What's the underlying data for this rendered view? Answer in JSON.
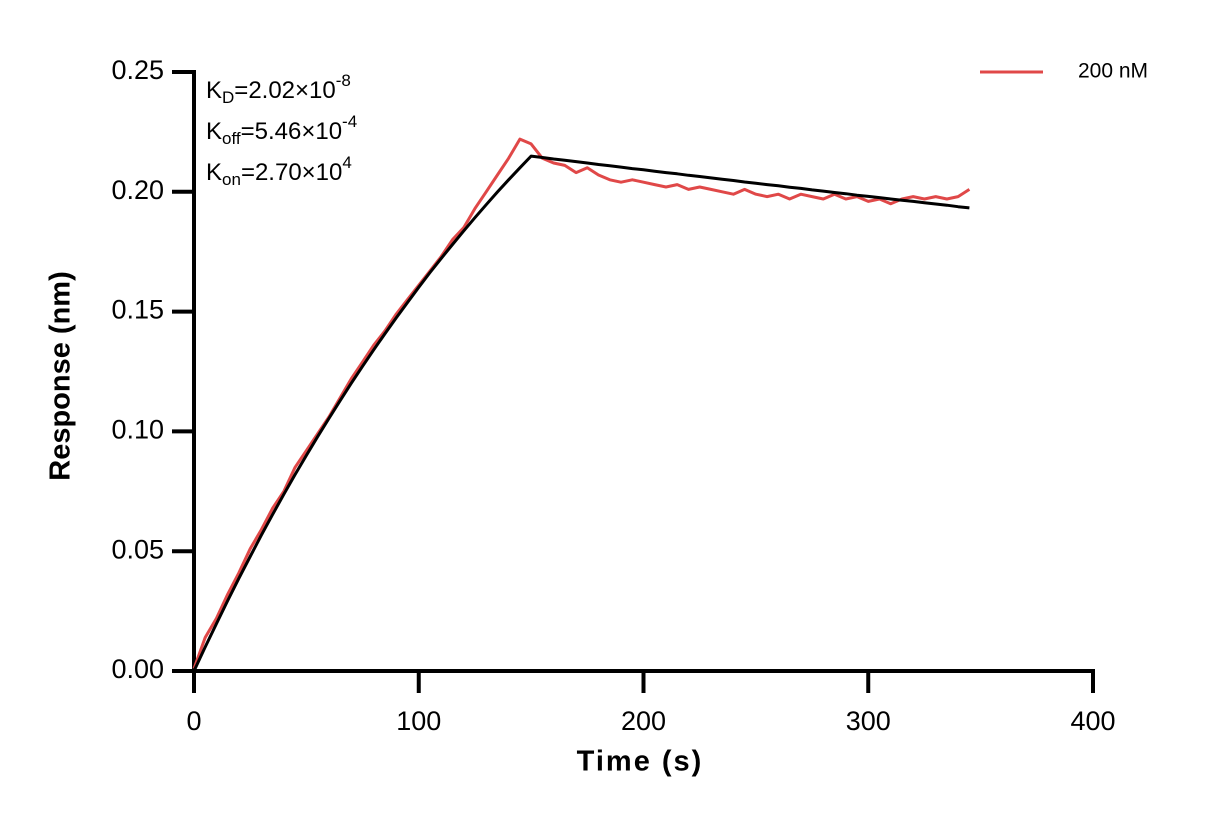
{
  "chart_data": {
    "type": "line",
    "x_label": "Time (s)",
    "y_label": "Response (nm)",
    "annotations": [
      {
        "base": "K",
        "sub": "D",
        "text": "=2.02×10",
        "sup": "-8"
      },
      {
        "base": "K",
        "sub": "off",
        "text": "=5.46×10",
        "sup": "-4"
      },
      {
        "base": "K",
        "sub": "on",
        "text": "=2.70×10",
        "sup": "4"
      }
    ],
    "x": [
      0,
      5,
      10,
      15,
      20,
      25,
      30,
      35,
      40,
      45,
      50,
      55,
      60,
      65,
      70,
      75,
      80,
      85,
      90,
      95,
      100,
      105,
      110,
      115,
      120,
      125,
      130,
      135,
      140,
      145,
      150,
      155,
      160,
      165,
      170,
      175,
      180,
      185,
      190,
      195,
      200,
      205,
      210,
      215,
      220,
      225,
      230,
      235,
      240,
      245,
      250,
      255,
      260,
      265,
      270,
      275,
      280,
      285,
      290,
      295,
      300,
      305,
      310,
      315,
      320,
      325,
      330,
      335,
      340,
      345
    ],
    "series": [
      {
        "name": "200 nM",
        "color": "#e04848",
        "values": [
          0.001,
          0.014,
          0.022,
          0.032,
          0.041,
          0.051,
          0.059,
          0.068,
          0.075,
          0.085,
          0.092,
          0.099,
          0.106,
          0.114,
          0.122,
          0.129,
          0.136,
          0.142,
          0.149,
          0.155,
          0.161,
          0.167,
          0.173,
          0.18,
          0.185,
          0.193,
          0.2,
          0.207,
          0.214,
          0.222,
          0.22,
          0.214,
          0.212,
          0.211,
          0.208,
          0.21,
          0.207,
          0.205,
          0.204,
          0.205,
          0.204,
          0.203,
          0.202,
          0.203,
          0.201,
          0.202,
          0.201,
          0.2,
          0.199,
          0.201,
          0.199,
          0.198,
          0.199,
          0.197,
          0.199,
          0.198,
          0.197,
          0.199,
          0.197,
          0.198,
          0.196,
          0.197,
          0.195,
          0.197,
          0.198,
          0.197,
          0.198,
          0.197,
          0.198,
          0.201
        ]
      },
      {
        "color": "#000000",
        "values": [
          0,
          0.01,
          0.0198,
          0.0294,
          0.0387,
          0.0478,
          0.0567,
          0.0654,
          0.0738,
          0.082,
          0.09,
          0.0978,
          0.1054,
          0.1128,
          0.1201,
          0.1272,
          0.1341,
          0.1408,
          0.1474,
          0.1538,
          0.1602,
          0.1663,
          0.1722,
          0.178,
          0.1837,
          0.1892,
          0.1946,
          0.1999,
          0.205,
          0.21,
          0.2149,
          0.2143,
          0.2137,
          0.2132,
          0.2126,
          0.212,
          0.2114,
          0.2109,
          0.2103,
          0.2097,
          0.2092,
          0.2086,
          0.208,
          0.2075,
          0.2069,
          0.2064,
          0.2058,
          0.2052,
          0.2047,
          0.2041,
          0.2036,
          0.203,
          0.2025,
          0.2019,
          0.2014,
          0.2008,
          0.2003,
          0.1997,
          0.1992,
          0.1986,
          0.1981,
          0.1976,
          0.197,
          0.1965,
          0.196,
          0.1954,
          0.1949,
          0.1944,
          0.1938,
          0.1933
        ]
      }
    ],
    "xlim": [
      0,
      400
    ],
    "xticks": [
      0,
      100,
      200,
      300,
      400
    ],
    "ylim": [
      0,
      0.25
    ],
    "yticks": [
      {
        "value": 0,
        "label": "0.00"
      },
      {
        "value": 0.05,
        "label": "0.05"
      },
      {
        "value": 0.1,
        "label": "0.10"
      },
      {
        "value": 0.15,
        "label": "0.15"
      },
      {
        "value": 0.2,
        "label": "0.20"
      },
      {
        "value": 0.25,
        "label": "0.25"
      }
    ],
    "legend": "top-right",
    "grid": false
  }
}
